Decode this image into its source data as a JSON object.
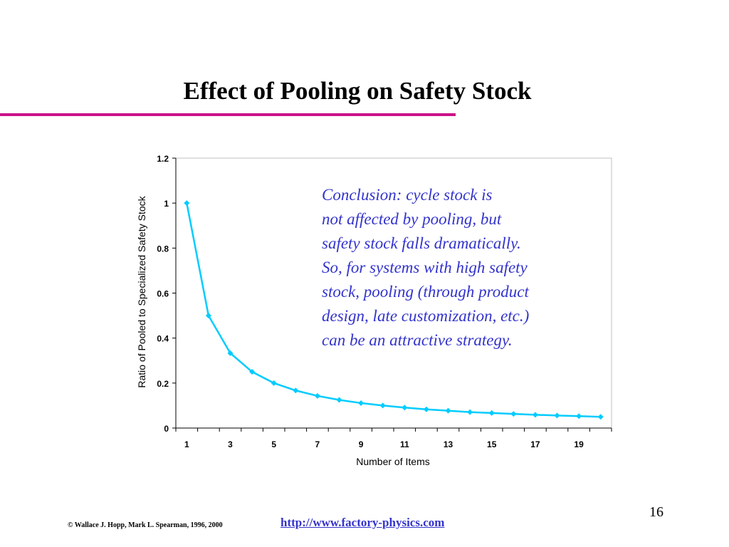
{
  "slide": {
    "title": "Effect of Pooling on Safety Stock",
    "page_number": "16",
    "copyright": "© Wallace J. Hopp, Mark L. Spearman, 1996, 2000",
    "url": "http://www.factory-physics.com",
    "accent_color": "#cc1188"
  },
  "conclusion": {
    "lines": [
      "Conclusion: cycle stock is",
      "not affected by pooling, but",
      "safety stock falls dramatically.",
      "So, for systems with high safety",
      "stock, pooling (through product",
      "design, late customization, etc.)",
      "can be an attractive strategy."
    ],
    "color": "#3333cc"
  },
  "chart_data": {
    "type": "line",
    "xlabel": "Number of Items",
    "ylabel": "Ratio of Pooled to Specialized Safety Stock",
    "x": [
      1,
      2,
      3,
      4,
      5,
      6,
      7,
      8,
      9,
      10,
      11,
      12,
      13,
      14,
      15,
      16,
      17,
      18,
      19,
      20
    ],
    "series": [
      {
        "values": [
          1.0,
          0.5,
          0.333,
          0.25,
          0.2,
          0.167,
          0.143,
          0.125,
          0.111,
          0.1,
          0.091,
          0.083,
          0.077,
          0.071,
          0.067,
          0.063,
          0.059,
          0.056,
          0.053,
          0.05
        ],
        "color": "#00ccff",
        "marker": "diamond"
      }
    ],
    "xticks": [
      "1",
      "3",
      "5",
      "7",
      "9",
      "11",
      "13",
      "15",
      "17",
      "19"
    ],
    "yticks": [
      "0",
      "0.2",
      "0.4",
      "0.6",
      "0.8",
      "1",
      "1.2"
    ],
    "ylim": [
      0,
      1.2
    ],
    "xlim": [
      0.5,
      20.5
    ],
    "grid": false,
    "legend": "none"
  }
}
